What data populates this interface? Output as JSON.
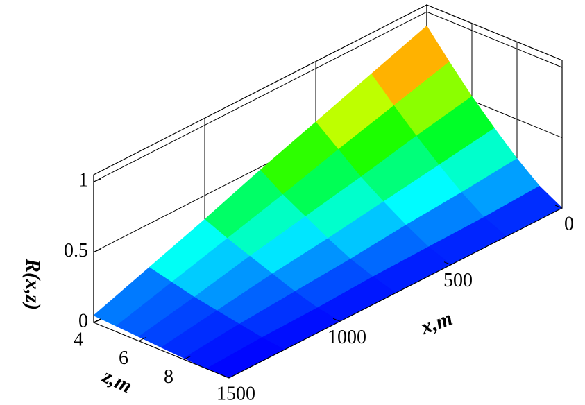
{
  "chart_data": {
    "type": "surface",
    "xlabel": "x,m",
    "zlabel": "z,m",
    "rlabel": "R(x,z)",
    "x": [
      0,
      250,
      500,
      750,
      1000,
      1250,
      1500
    ],
    "z": [
      4,
      5,
      6,
      7,
      8,
      9,
      10
    ],
    "values": [
      [
        0.9,
        0.71,
        0.53,
        0.37,
        0.22,
        0.09,
        0
      ],
      [
        0.76,
        0.6,
        0.45,
        0.31,
        0.18,
        0.07,
        0
      ],
      [
        0.62,
        0.49,
        0.36,
        0.25,
        0.15,
        0.06,
        0
      ],
      [
        0.48,
        0.37,
        0.28,
        0.19,
        0.11,
        0.05,
        0
      ],
      [
        0.33,
        0.26,
        0.2,
        0.14,
        0.08,
        0.03,
        0
      ],
      [
        0.19,
        0.15,
        0.11,
        0.08,
        0.05,
        0.02,
        0
      ],
      [
        0.05,
        0.04,
        0.03,
        0.02,
        0.01,
        0,
        0
      ]
    ],
    "xlim": [
      0,
      1500
    ],
    "xticks": [
      0,
      500,
      1000,
      1500
    ],
    "zlim": [
      4,
      10
    ],
    "zticks": [
      4,
      6,
      8
    ],
    "rlim": [
      0,
      1.05
    ],
    "rticks": [
      0,
      0.5,
      1
    ],
    "colors": [
      "#0000ff",
      "#00ffff",
      "#00ff00",
      "#ffff00",
      "#ff0000"
    ],
    "grid": true
  }
}
